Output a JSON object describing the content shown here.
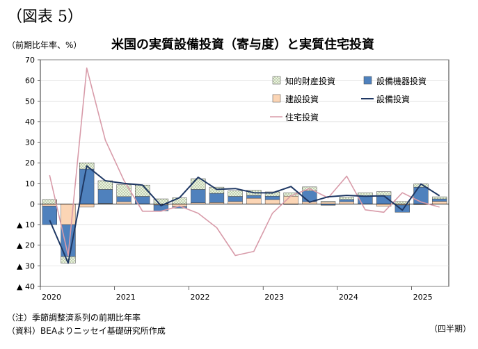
{
  "figure_label": "（図表 5）",
  "unit_label": "（前期比年率、%）",
  "note": "（注）季節調整済系列の前期比年率",
  "source": "（資料）BEAよりニッセイ基礎研究所作成",
  "period_label": "（四半期）",
  "colors": {
    "ip": "#ebf3e1",
    "equipment": "#4f81bd",
    "structures": "#fbd5b5",
    "total_line": "#1f3864",
    "residential_line": "#d89ba9"
  },
  "chart_data": {
    "type": "bar",
    "title": "米国の実質設備投資（寄与度）と実質住宅投資",
    "ylim": [
      -40,
      70
    ],
    "yticks": [
      {
        "value": 70,
        "label": "70"
      },
      {
        "value": 60,
        "label": "60"
      },
      {
        "value": 50,
        "label": "50"
      },
      {
        "value": 40,
        "label": "40"
      },
      {
        "value": 30,
        "label": "30"
      },
      {
        "value": 20,
        "label": "20"
      },
      {
        "value": 10,
        "label": "10"
      },
      {
        "value": 0,
        "label": "0"
      },
      {
        "value": -10,
        "label": "▲ 10"
      },
      {
        "value": -20,
        "label": "▲ 20"
      },
      {
        "value": -30,
        "label": "▲ 30"
      },
      {
        "value": -40,
        "label": "▲ 40"
      }
    ],
    "year_labels": [
      {
        "index": 0,
        "label": "2020"
      },
      {
        "index": 4,
        "label": "2021"
      },
      {
        "index": 8,
        "label": "2022"
      },
      {
        "index": 12,
        "label": "2023"
      },
      {
        "index": 16,
        "label": "2024"
      },
      {
        "index": 20,
        "label": "2025"
      }
    ],
    "quarters": [
      "2020Q1",
      "2020Q2",
      "2020Q3",
      "2020Q4",
      "2021Q1",
      "2021Q2",
      "2021Q3",
      "2021Q4",
      "2022Q1",
      "2022Q2",
      "2022Q3",
      "2022Q4",
      "2023Q1",
      "2023Q2",
      "2023Q3",
      "2023Q4",
      "2024Q1",
      "2024Q2",
      "2024Q3",
      "2024Q4",
      "2025Q1",
      "2025Q2"
    ],
    "series": [
      {
        "name": "知的財産投資",
        "kind": "bar",
        "values": [
          2.2,
          -3.2,
          3.0,
          4.2,
          5.8,
          5.5,
          2.5,
          3.0,
          5.2,
          3.0,
          2.7,
          2.5,
          2.1,
          1.7,
          1.9,
          0.4,
          1.1,
          1.8,
          1.9,
          1.2,
          1.5,
          1.0
        ]
      },
      {
        "name": "設備機器投資",
        "kind": "bar",
        "values": [
          -9.0,
          -15.5,
          17.0,
          6.8,
          2.5,
          3.6,
          -2.8,
          -0.8,
          6.5,
          4.5,
          2.5,
          1.4,
          1.7,
          -0.2,
          5.3,
          -0.6,
          1.1,
          3.7,
          4.1,
          -3.5,
          8.2,
          1.2
        ]
      },
      {
        "name": "建設投資",
        "kind": "bar",
        "values": [
          -1.0,
          -10.0,
          -1.5,
          0.3,
          1.1,
          0.1,
          -0.5,
          -1.2,
          0.6,
          0.7,
          1.2,
          2.8,
          2.1,
          3.8,
          1.1,
          0.9,
          1.1,
          -0.1,
          -1.1,
          -0.5,
          -0.3,
          1.3
        ]
      },
      {
        "name": "設備投資",
        "kind": "line",
        "values": [
          -7.8,
          -28.7,
          18.5,
          11.3,
          10.0,
          9.2,
          -0.8,
          3.1,
          13.0,
          7.1,
          7.5,
          5.5,
          5.4,
          8.5,
          0.9,
          3.5,
          4.2,
          3.8,
          4.0,
          -3.0,
          9.7,
          4.0
        ]
      },
      {
        "name": "住宅投資",
        "kind": "line",
        "values": [
          14.0,
          -25.0,
          66.0,
          31.0,
          11.5,
          -3.5,
          -3.5,
          -1.0,
          -4.5,
          -11.5,
          -25.0,
          -23.0,
          -4.5,
          4.0,
          7.5,
          3.0,
          13.5,
          -2.8,
          -4.0,
          5.5,
          1.0,
          -1.5
        ]
      }
    ]
  }
}
